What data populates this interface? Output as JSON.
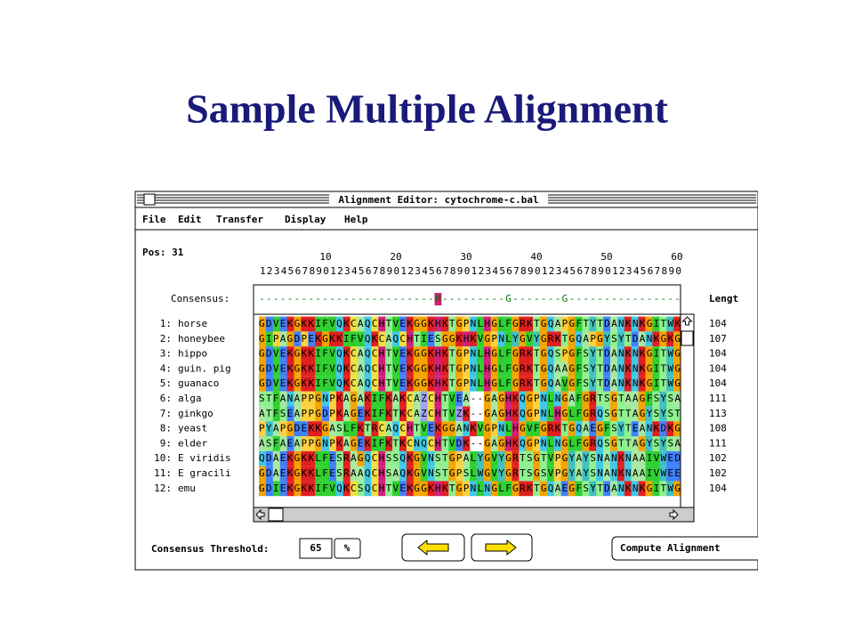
{
  "slide_title": "Sample Multiple Alignment",
  "window": {
    "title": "Alignment Editor: cytochrome-c.bal",
    "menu": [
      "File",
      "Edit",
      "Transfer",
      "Display",
      "Help"
    ]
  },
  "position": "Pos: 31",
  "ruler": {
    "tens": [
      "10",
      "20",
      "30",
      "40",
      "50",
      "60"
    ],
    "units": "123456789012345678901234567890123456789012345678901234567890"
  },
  "consensus": {
    "label": "Consensus:",
    "sequence": "-------------------------H---------G-------G----------------"
  },
  "length_header": "Lengt",
  "sequences": [
    {
      "index": "1:",
      "name": "horse",
      "residues": "GDVEKGKKIFVQKCAQCHTVEKGGKHKTGPNLHGLFGRKTGQAPGFTYTDANKNKGITWK",
      "length": 104
    },
    {
      "index": "2:",
      "name": "honeybee",
      "residues": "GIPAGDPEKGKKIFVQKCAQCHTIESGGKHKVGPNLYGVYGRKTGQAPGYSYTDANKGKG",
      "length": 107
    },
    {
      "index": "3:",
      "name": "hippo",
      "residues": "GDVEKGKKIFVQKCAQCHTVEKGGKHKTGPNLHGLFGRKTGQSPGFSYTDANKNKGITWG",
      "length": 104
    },
    {
      "index": "4:",
      "name": "guin. pig",
      "residues": "GDVEKGKKIFVQKCAQCHTVEKGGKHKTGPNLHGLFGRKTGQAAGFSYTDANKNKGITWG",
      "length": 104
    },
    {
      "index": "5:",
      "name": "guanaco",
      "residues": "GDVEKGKKIFVQKCAQCHTVEKGGKHKTGPNLHGLFGRKTGQAVGFSYTDANKNKGITWG",
      "length": 104
    },
    {
      "index": "6:",
      "name": "alga",
      "residues": "STFANAPPGNPKAGAKIFKAKCAZCHTVEA--GAGHKQGPNLNGAFGRTSGTAAGFSYSA",
      "length": 111
    },
    {
      "index": "7:",
      "name": "ginkgo",
      "residues": "ATFSEAPPGDPKAGEKIFKTKCAZCHTVZK--GAGHKQGPNLHGLFGRQSGTTAGYSYST",
      "length": 113
    },
    {
      "index": "8:",
      "name": "yeast",
      "residues": "PYAPGDEKKGASLFKTRCAQCHTVEKGGANKVGPNLHGVFGRKTGQAEGFSYTEANKDKG",
      "length": 108
    },
    {
      "index": "9:",
      "name": "elder",
      "residues": "ASFAEAPPGNPKAGEKIFKTKCNQCHTVDK--GAGHKQGPNLNGLFGRQSGTTAGYSYSA",
      "length": 111
    },
    {
      "index": "10:",
      "name": "E viridis",
      "residues": "QDAEKGKKLFESRAGQCHSSQKGVNSTGPALYGVYGRTSGTVPGYAYSNANKNAAIVWED",
      "length": 102
    },
    {
      "index": "11:",
      "name": "E gracili",
      "residues": "GDAEKGKKLFESRAAQCHSAQKGVNSTGPSLWGVYGRTSGSVPGYAYSNANKNAAIVWEE",
      "length": 102
    },
    {
      "index": "12:",
      "name": "emu",
      "residues": "GDIEKGKKIFVQKCSQCHTVEKGGKHKTGPNLNGLFGRKTGQAEGFSYTDANKNKGITWG",
      "length": 104
    }
  ],
  "threshold": {
    "label": "Consensus Threshold:",
    "value": "65",
    "unit": "%"
  },
  "compute_button": "Compute Alignment"
}
